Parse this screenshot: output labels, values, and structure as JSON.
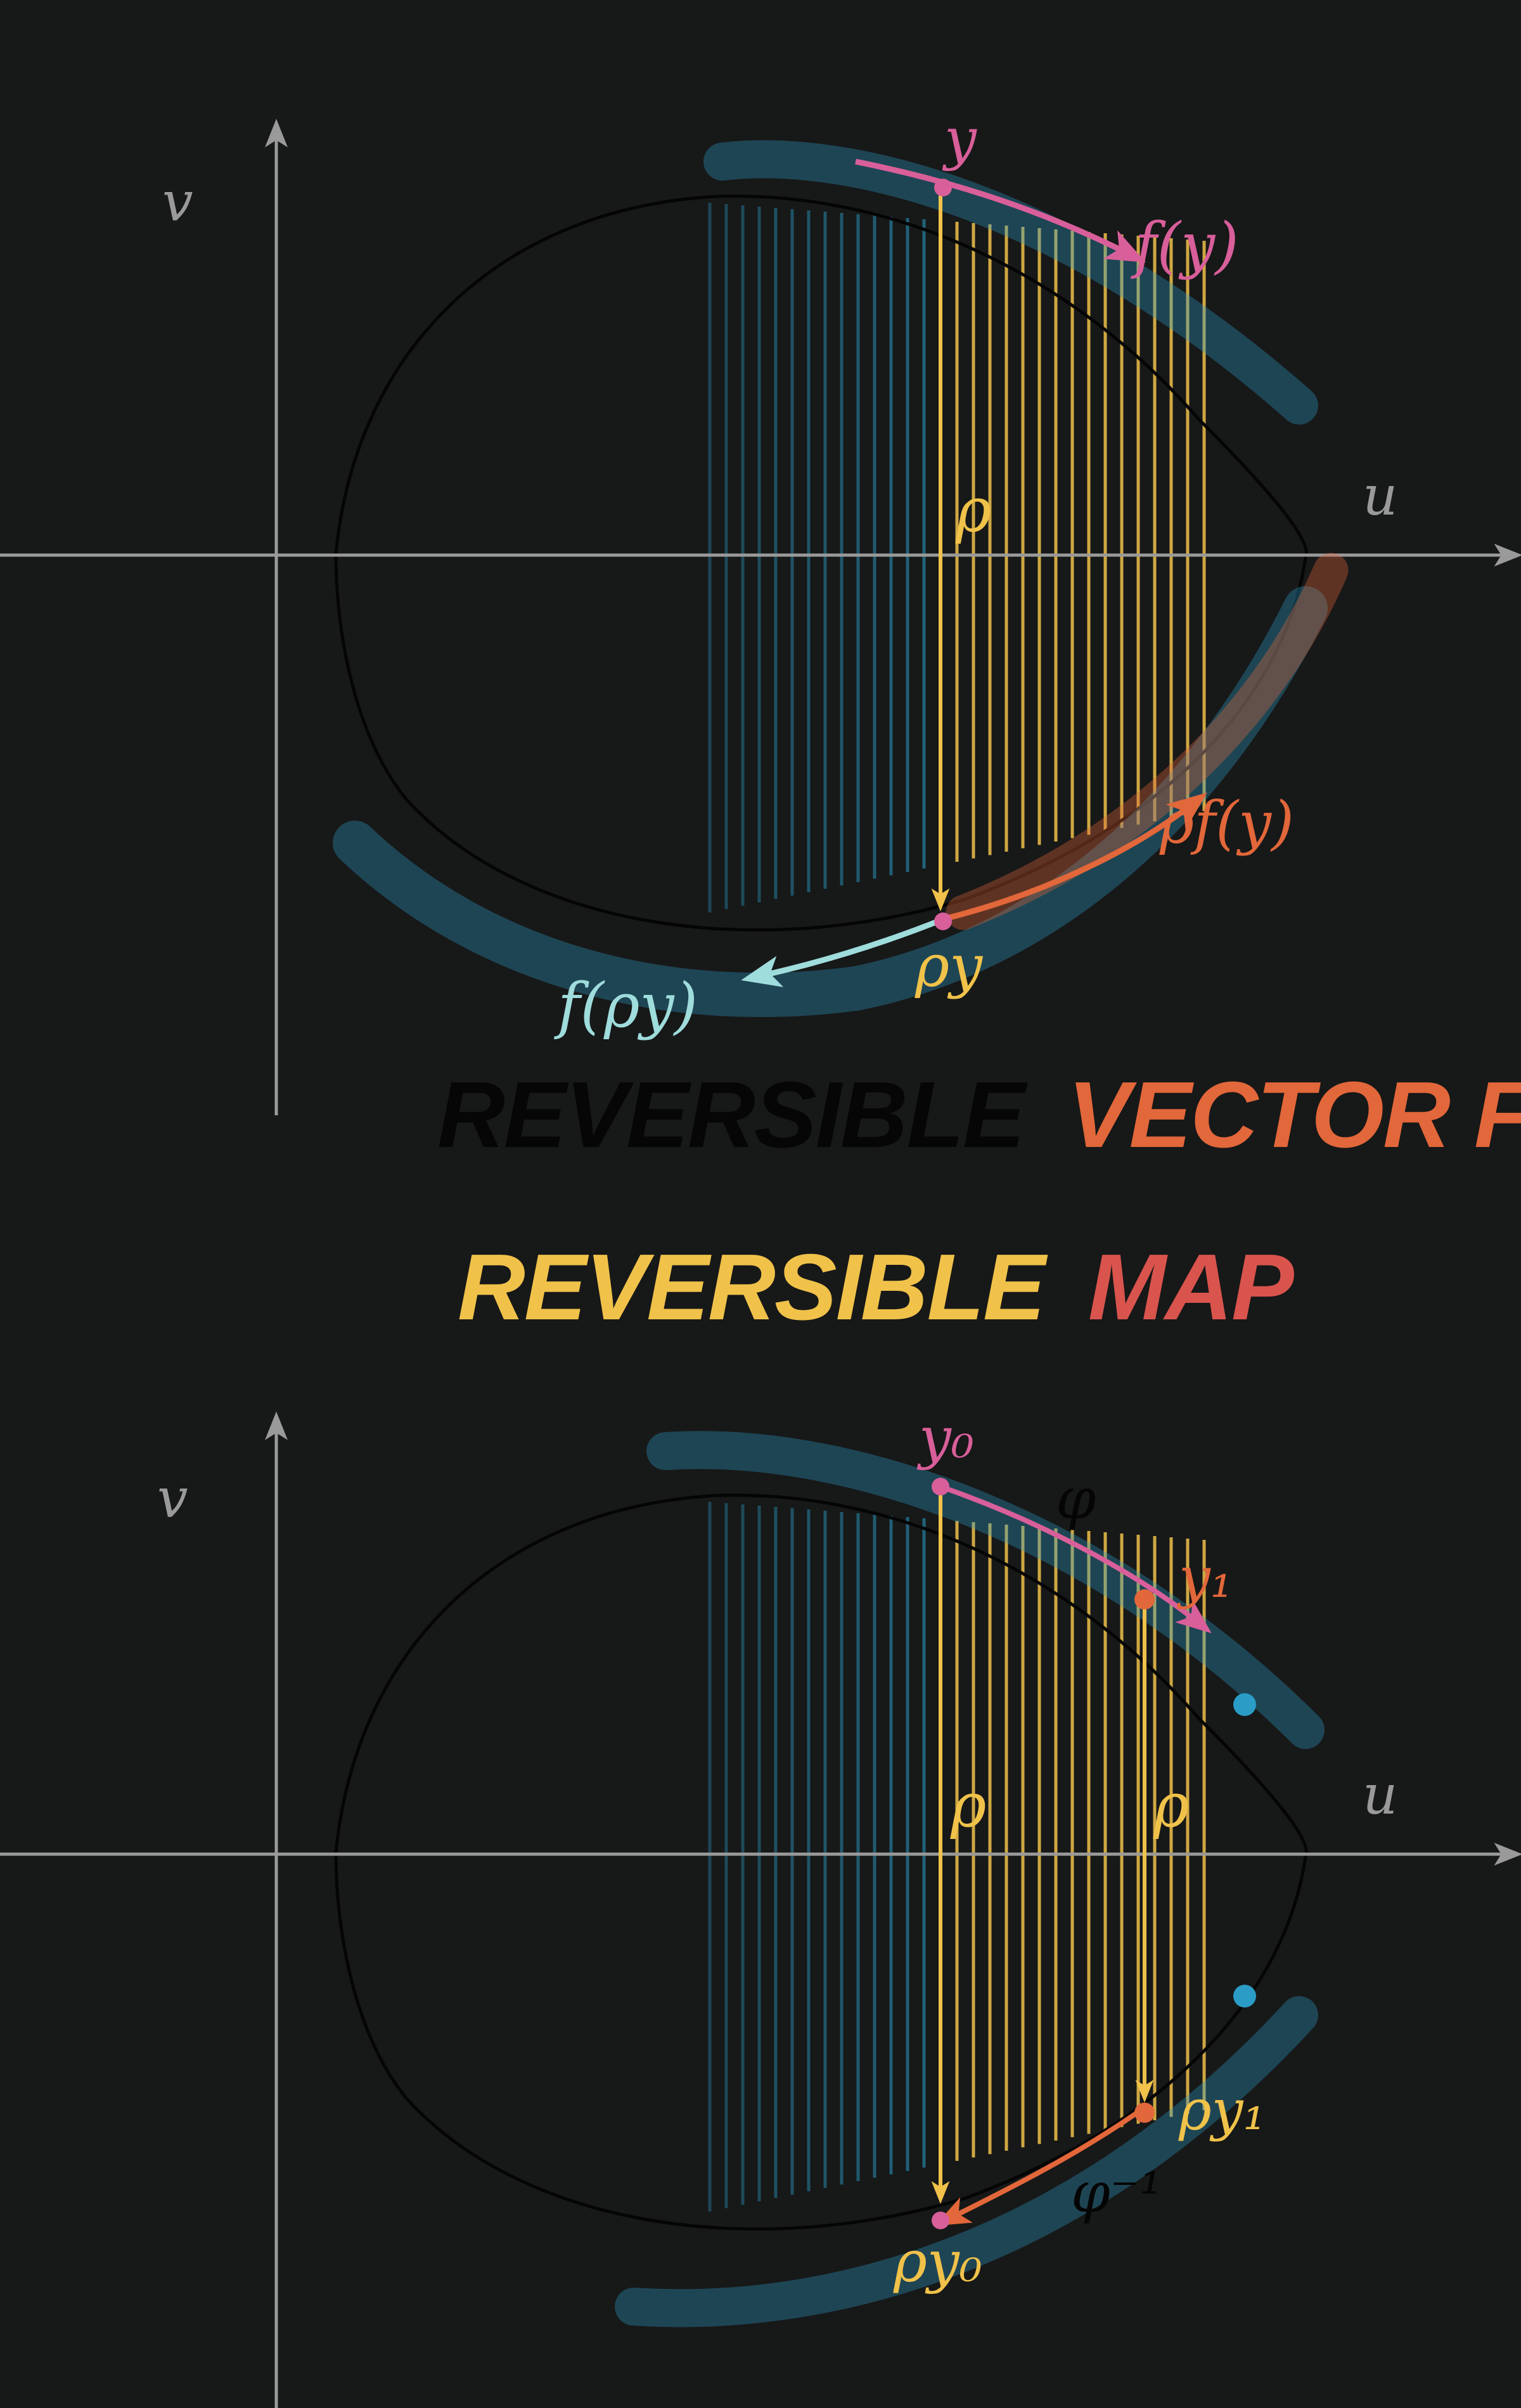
{
  "colors": {
    "background": "#171818",
    "axis": "#9a9a9a",
    "blue": "#2a9cc6",
    "yellow": "#f0c24a",
    "orange": "#e2673a",
    "pink": "#d85f9a",
    "red": "#d9544d",
    "black": "#0a0a0a",
    "teal": "#9fdcdc"
  },
  "titles": {
    "line1_word1": "REVERSIBLE",
    "line1_word2": "VECTOR FIELD",
    "line2_word1": "REVERSIBLE",
    "line2_word2": "MAP"
  },
  "top_panel": {
    "axis_u": "u",
    "axis_v": "v",
    "label_y": "y",
    "label_fy": "f(y)",
    "label_rho": "ρ",
    "label_rho_y": "ρy",
    "label_rho_fy": "ρf(y)",
    "label_f_rho_y": "f(ρy)"
  },
  "bottom_panel": {
    "axis_u": "u",
    "axis_v": "v",
    "label_y0": "y₀",
    "label_phi": "φ",
    "label_y1": "y₁",
    "label_rho": "ρ",
    "label_rho_y0": "ρy₀",
    "label_rho_y1": "ρy₁",
    "label_phi_inv": "φ⁻¹"
  }
}
